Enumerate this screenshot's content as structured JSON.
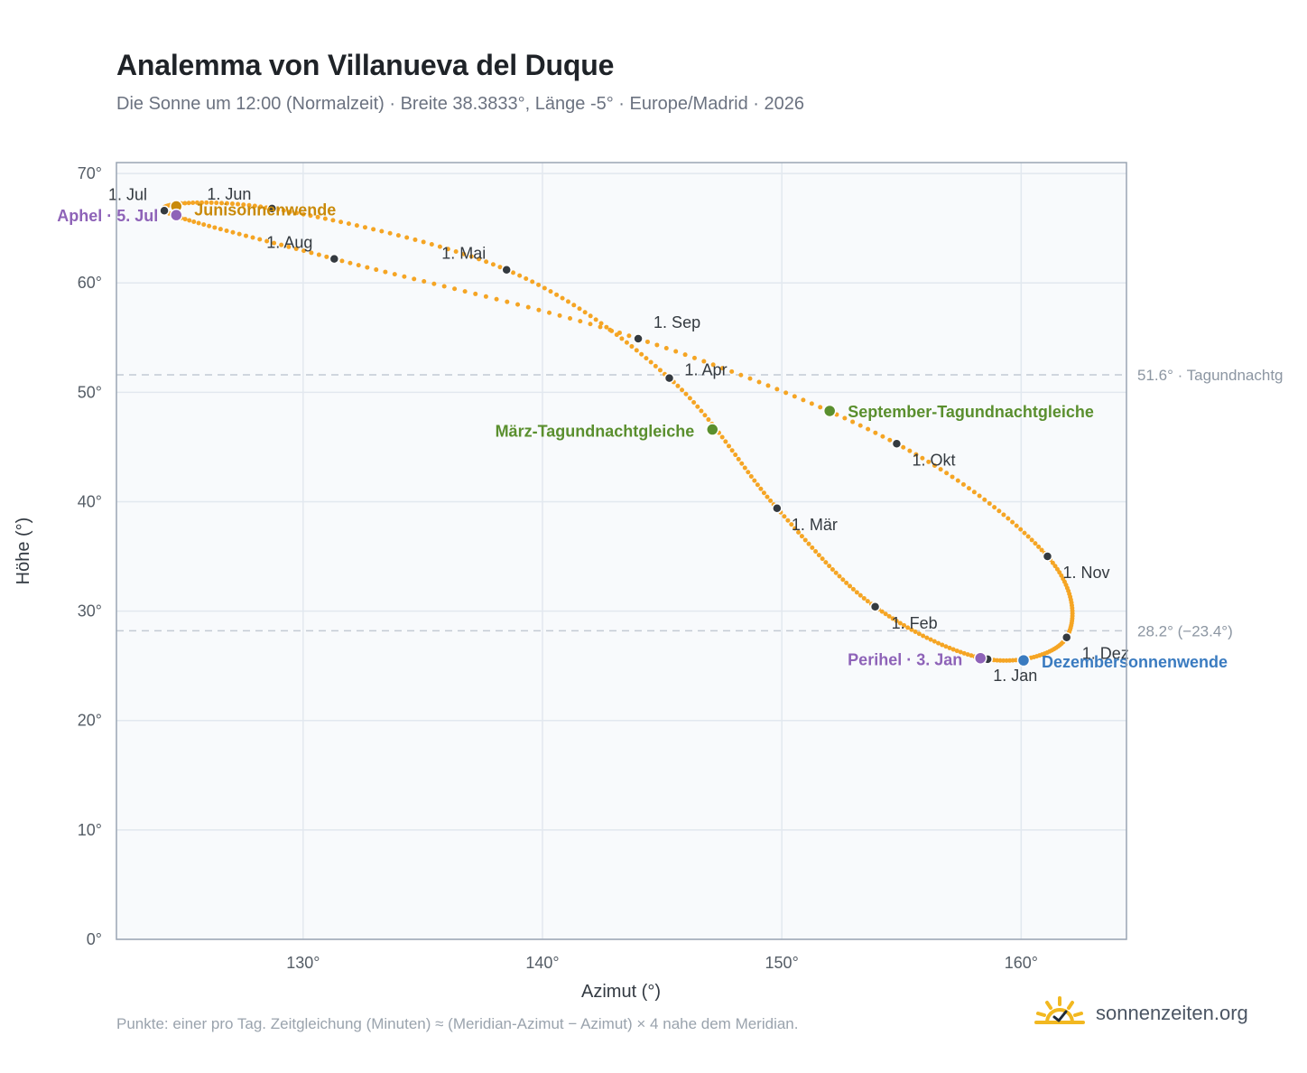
{
  "title": "Analemma von Villanueva del Duque",
  "subtitle": "Die Sonne um 12:00 (Normalzeit) · Breite 38.3833°, Länge -5° · Europe/Madrid · 2026",
  "footnote": "Punkte: einer pro Tag. Zeitgleichung (Minuten) ≈ (Meridian-Azimut − Azimut) × 4 nahe dem Meridian.",
  "brand": {
    "name": "sonnenzeiten.org",
    "icon": "sun-logo-icon"
  },
  "colors": {
    "curve": "#f5a524",
    "month_marker": "#343a40",
    "solstice_june": "#c98a0a",
    "equinox": "#5a8f2e",
    "solstice_december": "#3a7bc0",
    "apsis": "#8e63b8",
    "reference_line": "#c3cad3",
    "plot_background": "#f8fafc",
    "grid": "#e2e8ef",
    "frame": "#9aa5b4"
  },
  "chart_data": {
    "type": "scatter",
    "xlabel": "Azimut (°)",
    "ylabel": "Höhe (°)",
    "xlim": [
      122.2,
      164.4
    ],
    "ylim": [
      0,
      71
    ],
    "xticks": [
      130,
      140,
      150,
      160
    ],
    "yticks": [
      0,
      10,
      20,
      30,
      40,
      50,
      60,
      70
    ],
    "xtick_labels": [
      "130°",
      "140°",
      "150°",
      "160°"
    ],
    "ytick_labels": [
      "0°",
      "10°",
      "20°",
      "30°",
      "40°",
      "50°",
      "60°",
      "70°"
    ],
    "grid": true,
    "daily_path": [
      {
        "label": "1. Jan",
        "x": 158.6,
        "y": 25.6
      },
      {
        "label": "1. Feb",
        "x": 153.9,
        "y": 30.4
      },
      {
        "label": "1. Mär",
        "x": 149.8,
        "y": 39.4
      },
      {
        "label": "1. Apr",
        "x": 145.3,
        "y": 51.3
      },
      {
        "label": "1. Mai",
        "x": 138.5,
        "y": 61.2
      },
      {
        "label": "1. Jun",
        "x": 128.7,
        "y": 66.8
      },
      {
        "label": "1. Jul",
        "x": 124.2,
        "y": 66.6
      },
      {
        "label": "1. Aug",
        "x": 131.3,
        "y": 62.2
      },
      {
        "label": "1. Sep",
        "x": 144.0,
        "y": 54.9
      },
      {
        "label": "1. Okt",
        "x": 154.8,
        "y": 45.3
      },
      {
        "label": "1. Nov",
        "x": 161.1,
        "y": 35.0
      },
      {
        "label": "1. Dez",
        "x": 161.9,
        "y": 27.6
      }
    ],
    "month_markers": [
      {
        "label": "1. Jan",
        "x": 158.6,
        "y": 25.6
      },
      {
        "label": "1. Feb",
        "x": 153.9,
        "y": 30.4
      },
      {
        "label": "1. Mär",
        "x": 149.8,
        "y": 39.4
      },
      {
        "label": "1. Apr",
        "x": 145.3,
        "y": 51.3
      },
      {
        "label": "1. Mai",
        "x": 138.5,
        "y": 61.2
      },
      {
        "label": "1. Jun",
        "x": 128.7,
        "y": 66.8
      },
      {
        "label": "1. Jul",
        "x": 124.2,
        "y": 66.6
      },
      {
        "label": "1. Aug",
        "x": 131.3,
        "y": 62.2
      },
      {
        "label": "1. Sep",
        "x": 144.0,
        "y": 54.9
      },
      {
        "label": "1. Okt",
        "x": 154.8,
        "y": 45.3
      },
      {
        "label": "1. Nov",
        "x": 161.1,
        "y": 35.0
      },
      {
        "label": "1. Dez",
        "x": 161.9,
        "y": 27.6
      }
    ],
    "special_points": [
      {
        "label": "Junisonnenwende",
        "x": 124.7,
        "y": 67.0,
        "kind": "solstice_june"
      },
      {
        "label": "Aphel · 5. Jul",
        "x": 124.7,
        "y": 66.2,
        "kind": "apsis"
      },
      {
        "label": "März-Tagundnachtgleiche",
        "x": 147.1,
        "y": 46.6,
        "kind": "equinox"
      },
      {
        "label": "September-Tagundnachtgleiche",
        "x": 152.0,
        "y": 48.3,
        "kind": "equinox"
      },
      {
        "label": "Perihel · 3. Jan",
        "x": 158.3,
        "y": 25.7,
        "kind": "apsis"
      },
      {
        "label": "Dezembersonnenwende",
        "x": 160.1,
        "y": 25.5,
        "kind": "solstice_december"
      }
    ],
    "reference_lines": [
      {
        "y": 51.6,
        "label": "51.6° · Tagundnachtg"
      },
      {
        "y": 28.2,
        "label": "28.2° (−23.4°)"
      }
    ]
  }
}
